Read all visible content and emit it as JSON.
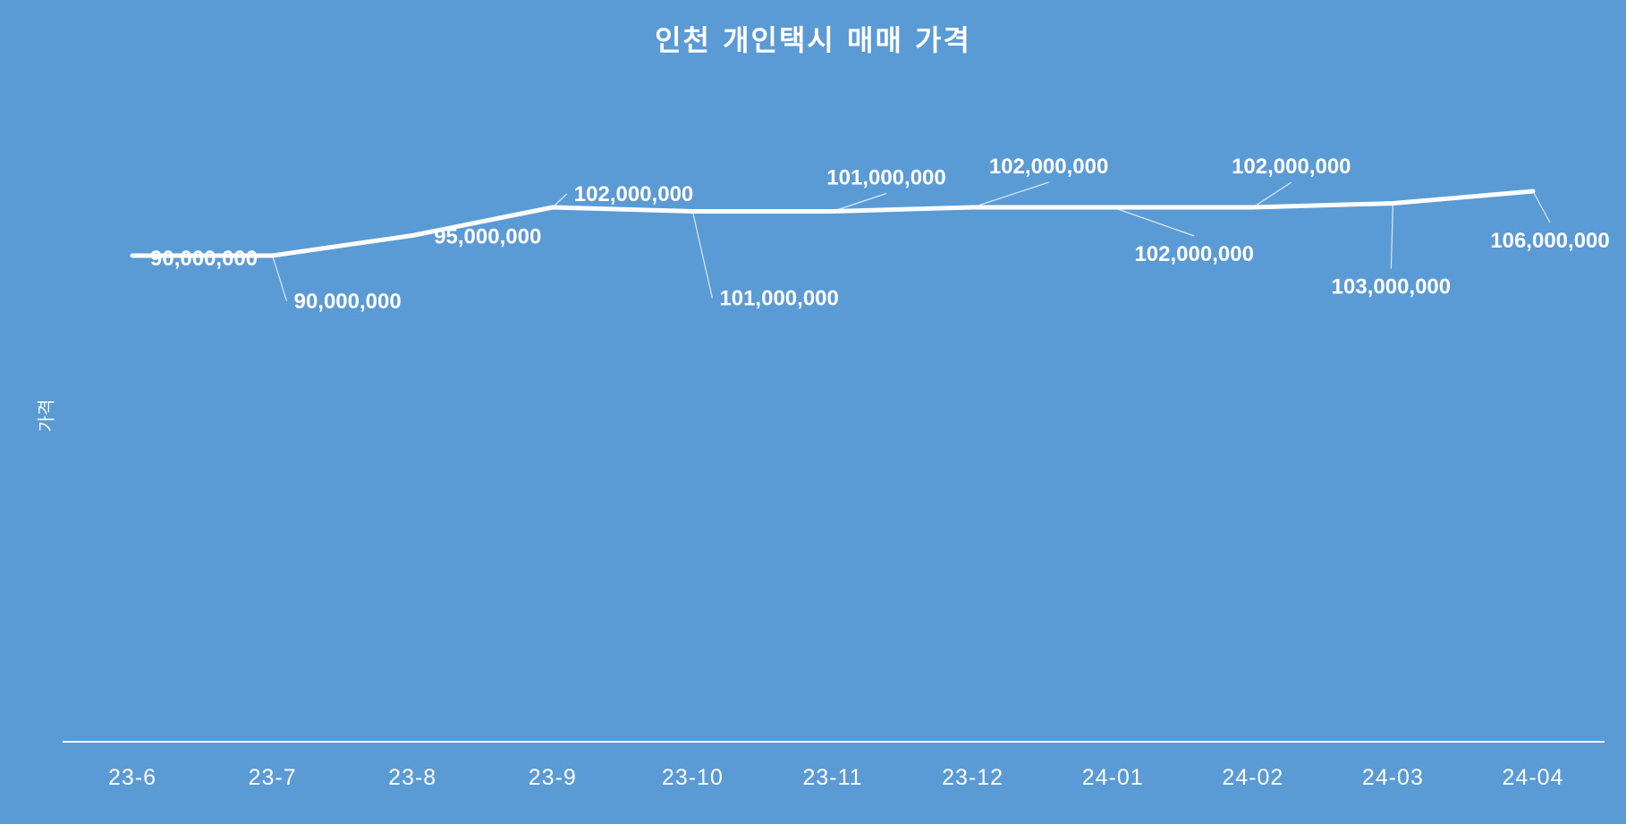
{
  "chart_data": {
    "type": "line",
    "title": "인천 개인택시 매매 가격",
    "xlabel": "",
    "ylabel": "가격",
    "categories": [
      "23-6",
      "23-7",
      "23-8",
      "23-9",
      "23-10",
      "23-11",
      "23-12",
      "24-01",
      "24-02",
      "24-03",
      "24-04"
    ],
    "values": [
      90000000,
      90000000,
      95000000,
      102000000,
      101000000,
      101000000,
      102000000,
      102000000,
      102000000,
      103000000,
      106000000
    ],
    "value_labels": [
      "90,000,000",
      "90,000,000",
      "95,000,000",
      "102,000,000",
      "101,000,000",
      "101,000,000",
      "102,000,000",
      "102,000,000",
      "102,000,000",
      "103,000,000",
      "106,000,000"
    ],
    "grid": false,
    "legend": "none",
    "colors": {
      "background": "#5b9bd5",
      "line": "#ffffff",
      "text": "#ffffff"
    }
  }
}
